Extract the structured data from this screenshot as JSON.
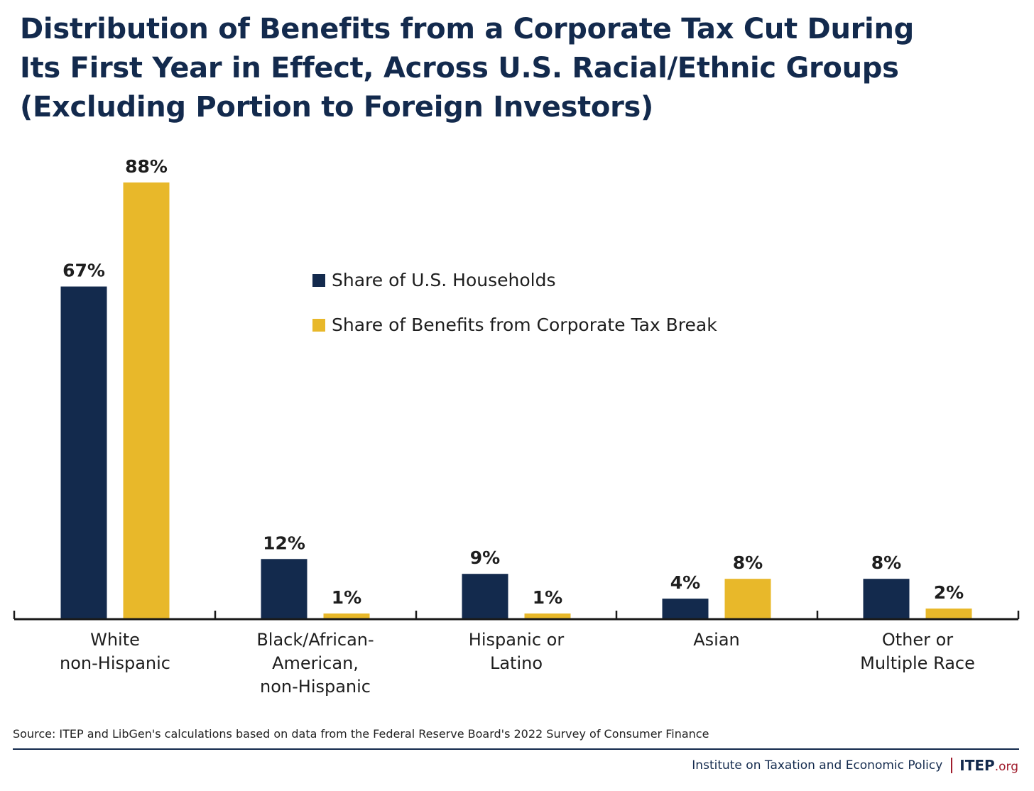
{
  "title_lines": [
    "Distribution of Benefits from a Corporate Tax Cut During",
    "Its First Year in Effect, Across U.S. Racial/Ethnic Groups",
    "(Excluding Portion to Foreign Investors)"
  ],
  "colors": {
    "title": "#132a4d",
    "households": "#132a4d",
    "benefits": "#e8b82a",
    "accent_red": "#a01c2c"
  },
  "legend": [
    {
      "label": "Share of U.S. Households",
      "color": "#132a4d"
    },
    {
      "label": "Share of Benefits from Corporate Tax Break",
      "color": "#e8b82a"
    }
  ],
  "chart_data": {
    "type": "bar",
    "categories": [
      [
        "White",
        "non-Hispanic"
      ],
      [
        "Black/African-",
        "American,",
        "non-Hispanic"
      ],
      [
        "Hispanic or",
        "Latino"
      ],
      [
        "Asian"
      ],
      [
        "Other or",
        "Multiple Race"
      ]
    ],
    "series": [
      {
        "name": "Share of U.S. Households",
        "color": "#132a4d",
        "values": [
          67,
          12,
          9,
          4,
          8
        ],
        "labels": [
          "67%",
          "12%",
          "9%",
          "4%",
          "8%"
        ]
      },
      {
        "name": "Share of Benefits from Corporate Tax Break",
        "color": "#e8b82a",
        "values": [
          88,
          1,
          1,
          8,
          2
        ],
        "labels": [
          "88%",
          "1%",
          "1%",
          "8%",
          "2%"
        ]
      }
    ],
    "ylim": [
      0,
      88
    ],
    "grid": false,
    "legend_position": "center-top"
  },
  "source": "Source: ITEP and LibGen's calculations based on data from the Federal Reserve Board's 2022 Survey of Consumer Finance",
  "footer": {
    "org": "Institute on Taxation and Economic Policy",
    "logo_main": "ITEP",
    "logo_suffix": ".org"
  }
}
